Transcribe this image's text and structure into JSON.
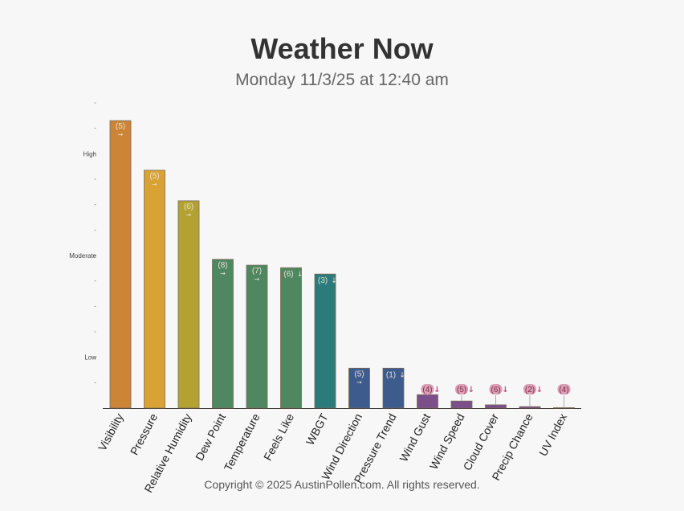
{
  "header": {
    "title": "Weather Now",
    "subtitle": "Monday 11/3/25 at 12:40 am"
  },
  "footer": {
    "copyright": "Copyright © 2025 AustinPollen.com.  All rights reserved."
  },
  "chart_data": {
    "type": "bar",
    "categories": [
      "Visibility",
      "Pressure",
      "Relative Humidity",
      "Dew Point",
      "Temperature",
      "Feels Like",
      "WBGT",
      "Wind Direction",
      "Pressure Trend",
      "Wind Gust",
      "Wind Speed",
      "Cloud Cover",
      "Precip Chance",
      "UV Index"
    ],
    "values": [
      11.3,
      9.35,
      8.15,
      5.85,
      5.62,
      5.52,
      5.27,
      1.57,
      1.57,
      0.53,
      0.28,
      0.13,
      0.06,
      0.02
    ],
    "labels": [
      "(5)",
      "(5)",
      "(6)",
      "(8)",
      "(7)",
      "(6)",
      "(3)",
      "(5)",
      "(1)",
      "(4)",
      "(5)",
      "(6)",
      "(2)",
      "(4)"
    ],
    "trends": [
      "→",
      "→",
      "→",
      "→",
      "→",
      "↓",
      "↓",
      "→",
      "↓",
      "↓",
      "↓",
      "↓",
      "↓",
      ""
    ],
    "colors": [
      "#cc8437",
      "#d9a333",
      "#b3a233",
      "#4f8760",
      "#4f8760",
      "#4f8760",
      "#2a7b7a",
      "#3d5b8d",
      "#3d5b8d",
      "#7a4f8a",
      "#7a4f8a",
      "#7a4f8a",
      "#7a4f8a",
      "#c9a0a8"
    ],
    "y_tick_labels": {
      "Low": 2,
      "Moderate": 6,
      "High": 10
    },
    "ylim": [
      0,
      12
    ],
    "xlabel": "",
    "ylabel": "",
    "grid": false
  }
}
